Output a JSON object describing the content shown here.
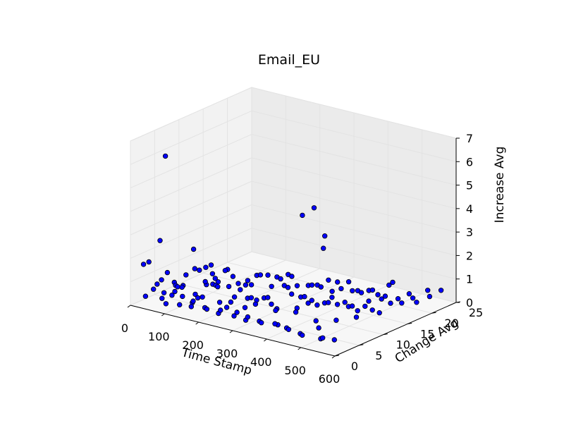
{
  "chart_data": {
    "type": "scatter",
    "projection": "3d",
    "title": "Email_EU",
    "xlabel": "Time Stamp",
    "ylabel": "Change Avg",
    "zlabel": "Increase Avg",
    "xlim": [
      0,
      600
    ],
    "ylim": [
      0,
      25
    ],
    "zlim": [
      0,
      7
    ],
    "xticks": [
      "0",
      "100",
      "200",
      "300",
      "400",
      "500",
      "600"
    ],
    "yticks": [
      "0",
      "5",
      "10",
      "15",
      "20",
      "25"
    ],
    "zticks": [
      "0",
      "1",
      "2",
      "3",
      "4",
      "5",
      "6",
      "7"
    ],
    "grid": true,
    "marker_color": "#0000ff",
    "marker_edge": "#000000",
    "points": [
      [
        10,
        2,
        1.6
      ],
      [
        30,
        4,
        2.5
      ],
      [
        60,
        3,
        6.3
      ],
      [
        40,
        1,
        1.9
      ],
      [
        100,
        6,
        2.2
      ],
      [
        220,
        20,
        2.8
      ],
      [
        240,
        21,
        3.1
      ],
      [
        300,
        19,
        2.3
      ],
      [
        310,
        18,
        1.9
      ],
      [
        180,
        4,
        2.0
      ],
      [
        150,
        5,
        1.7
      ],
      [
        80,
        2,
        1.5
      ],
      [
        20,
        5,
        0.7
      ],
      [
        25,
        3,
        0.5
      ],
      [
        15,
        8,
        0.3
      ],
      [
        35,
        9,
        0.6
      ],
      [
        45,
        6,
        0.2
      ],
      [
        50,
        2,
        0.9
      ],
      [
        55,
        7,
        0.4
      ],
      [
        60,
        10,
        0.8
      ],
      [
        65,
        4,
        0.3
      ],
      [
        70,
        12,
        0.5
      ],
      [
        75,
        8,
        1.1
      ],
      [
        80,
        5,
        0.6
      ],
      [
        85,
        11,
        0.2
      ],
      [
        90,
        3,
        0.9
      ],
      [
        95,
        9,
        0.4
      ],
      [
        100,
        13,
        0.7
      ],
      [
        105,
        6,
        0.3
      ],
      [
        110,
        2,
        1.0
      ],
      [
        115,
        10,
        0.5
      ],
      [
        120,
        7,
        0.8
      ],
      [
        125,
        4,
        0.2
      ],
      [
        130,
        12,
        0.6
      ],
      [
        135,
        8,
        0.9
      ],
      [
        140,
        5,
        0.4
      ],
      [
        145,
        14,
        0.3
      ],
      [
        150,
        9,
        1.2
      ],
      [
        155,
        3,
        0.6
      ],
      [
        160,
        11,
        0.5
      ],
      [
        165,
        6,
        0.9
      ],
      [
        170,
        13,
        0.3
      ],
      [
        175,
        8,
        0.7
      ],
      [
        180,
        10,
        0.4
      ],
      [
        185,
        5,
        1.0
      ],
      [
        190,
        15,
        0.6
      ],
      [
        195,
        7,
        0.2
      ],
      [
        200,
        12,
        0.9
      ],
      [
        205,
        4,
        0.5
      ],
      [
        210,
        9,
        0.8
      ],
      [
        215,
        14,
        0.3
      ],
      [
        220,
        6,
        0.6
      ],
      [
        225,
        11,
        1.1
      ],
      [
        230,
        8,
        0.4
      ],
      [
        235,
        16,
        0.7
      ],
      [
        240,
        3,
        0.5
      ],
      [
        245,
        13,
        0.9
      ],
      [
        250,
        10,
        0.3
      ],
      [
        255,
        7,
        0.6
      ],
      [
        260,
        15,
        0.8
      ],
      [
        265,
        5,
        0.4
      ],
      [
        270,
        12,
        1.0
      ],
      [
        275,
        9,
        0.5
      ],
      [
        280,
        17,
        0.3
      ],
      [
        285,
        6,
        0.7
      ],
      [
        290,
        14,
        0.6
      ],
      [
        295,
        11,
        0.9
      ],
      [
        300,
        8,
        0.4
      ],
      [
        305,
        16,
        0.5
      ],
      [
        310,
        4,
        0.8
      ],
      [
        315,
        13,
        0.3
      ],
      [
        320,
        10,
        1.0
      ],
      [
        325,
        18,
        0.6
      ],
      [
        330,
        7,
        0.4
      ],
      [
        335,
        15,
        0.7
      ],
      [
        340,
        12,
        0.5
      ],
      [
        345,
        9,
        0.9
      ],
      [
        350,
        17,
        0.3
      ],
      [
        355,
        5,
        0.6
      ],
      [
        360,
        14,
        0.8
      ],
      [
        365,
        11,
        0.4
      ],
      [
        370,
        19,
        0.6
      ],
      [
        375,
        8,
        0.5
      ],
      [
        380,
        16,
        0.9
      ],
      [
        385,
        13,
        0.3
      ],
      [
        390,
        10,
        0.7
      ],
      [
        395,
        18,
        0.4
      ],
      [
        400,
        6,
        0.6
      ],
      [
        405,
        15,
        0.8
      ],
      [
        410,
        12,
        0.5
      ],
      [
        415,
        20,
        0.3
      ],
      [
        420,
        9,
        0.7
      ],
      [
        425,
        17,
        0.6
      ],
      [
        430,
        14,
        0.4
      ],
      [
        435,
        11,
        0.9
      ],
      [
        440,
        19,
        0.5
      ],
      [
        445,
        7,
        0.3
      ],
      [
        450,
        16,
        0.7
      ],
      [
        455,
        13,
        0.4
      ],
      [
        460,
        21,
        0.6
      ],
      [
        465,
        10,
        0.8
      ],
      [
        470,
        18,
        0.5
      ],
      [
        475,
        15,
        0.3
      ],
      [
        480,
        12,
        0.6
      ],
      [
        485,
        20,
        0.9
      ],
      [
        490,
        8,
        0.4
      ],
      [
        495,
        17,
        0.5
      ],
      [
        500,
        14,
        0.7
      ],
      [
        505,
        22,
        0.3
      ],
      [
        510,
        11,
        0.6
      ],
      [
        515,
        19,
        0.4
      ],
      [
        520,
        16,
        0.8
      ],
      [
        525,
        13,
        0.5
      ],
      [
        530,
        21,
        0.3
      ],
      [
        535,
        9,
        0.6
      ],
      [
        540,
        18,
        0.4
      ],
      [
        545,
        23,
        0.5
      ],
      [
        550,
        15,
        0.7
      ],
      [
        555,
        20,
        0.3
      ],
      [
        560,
        12,
        0.6
      ],
      [
        565,
        22,
        0.4
      ],
      [
        570,
        24,
        0.5
      ],
      [
        30,
        1,
        0.4
      ],
      [
        50,
        3,
        0.2
      ],
      [
        70,
        2,
        0.6
      ],
      [
        90,
        1,
        0.3
      ],
      [
        110,
        3,
        0.5
      ],
      [
        130,
        1,
        0.4
      ],
      [
        150,
        2,
        0.3
      ],
      [
        170,
        1,
        0.7
      ],
      [
        190,
        2,
        0.4
      ],
      [
        210,
        1,
        0.5
      ],
      [
        230,
        2,
        0.3
      ],
      [
        250,
        1,
        0.6
      ],
      [
        270,
        3,
        0.4
      ],
      [
        290,
        1,
        0.5
      ],
      [
        310,
        2,
        0.3
      ],
      [
        330,
        1,
        0.6
      ],
      [
        350,
        2,
        0.4
      ],
      [
        370,
        1,
        0.5
      ],
      [
        390,
        3,
        0.3
      ],
      [
        410,
        1,
        0.6
      ],
      [
        430,
        2,
        0.4
      ],
      [
        450,
        1,
        0.5
      ],
      [
        470,
        2,
        0.3
      ],
      [
        490,
        1,
        0.4
      ],
      [
        510,
        3,
        0.6
      ],
      [
        530,
        2,
        0.3
      ],
      [
        550,
        1,
        0.5
      ],
      [
        570,
        2,
        0.4
      ]
    ]
  }
}
